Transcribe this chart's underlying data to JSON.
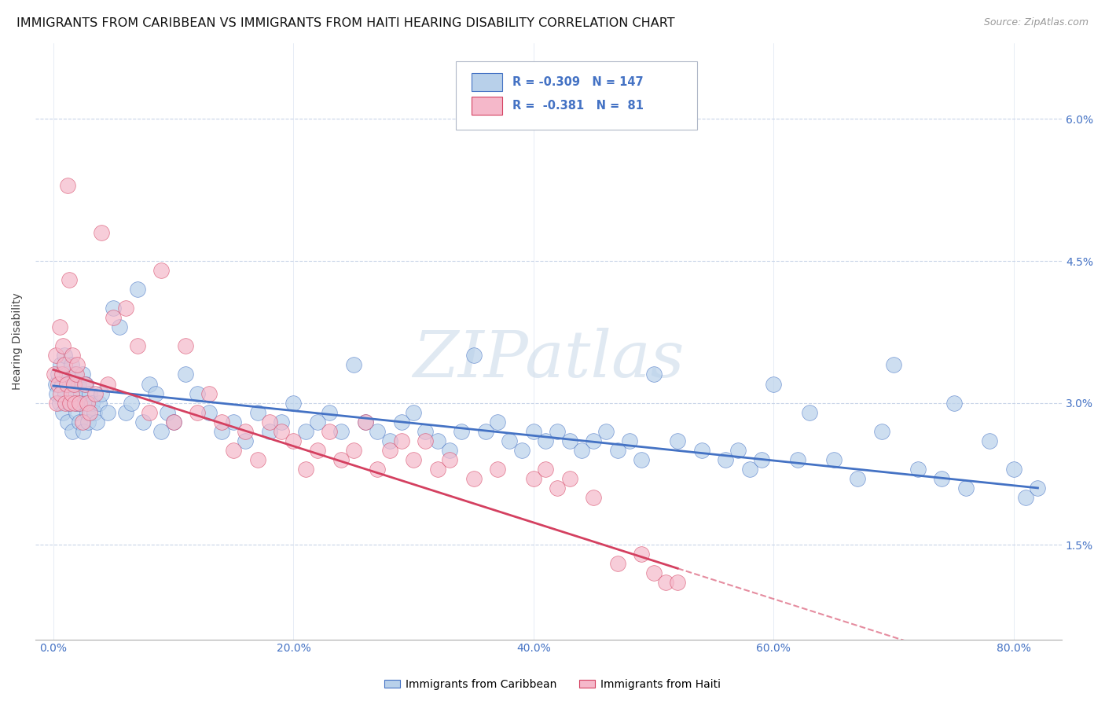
{
  "title": "IMMIGRANTS FROM CARIBBEAN VS IMMIGRANTS FROM HAITI HEARING DISABILITY CORRELATION CHART",
  "source": "Source: ZipAtlas.com",
  "xlabel_ticks": [
    "0.0%",
    "20.0%",
    "40.0%",
    "60.0%",
    "80.0%"
  ],
  "xlabel_vals": [
    0.0,
    20.0,
    40.0,
    60.0,
    80.0
  ],
  "ylabel_ticks": [
    "1.5%",
    "3.0%",
    "4.5%",
    "6.0%"
  ],
  "ylabel_vals": [
    1.5,
    3.0,
    4.5,
    6.0
  ],
  "ylim": [
    0.5,
    6.8
  ],
  "xlim": [
    -1.5,
    84.0
  ],
  "ylabel": "Hearing Disability",
  "legend_blue_label": "Immigrants from Caribbean",
  "legend_pink_label": "Immigrants from Haiti",
  "r_blue": "-0.309",
  "n_blue": "147",
  "r_pink": "-0.381",
  "n_pink": "81",
  "blue_color": "#b8d0ea",
  "pink_color": "#f5b8ca",
  "line_blue": "#4472c4",
  "line_pink": "#d44060",
  "line_dash_color": "#d44060",
  "watermark_color": "#c8d8e8",
  "title_fontsize": 11.5,
  "axis_label_color": "#4472c4",
  "grid_color": "#c8d4e8",
  "background_color": "#ffffff",
  "blue_scatter_x": [
    0.2,
    0.3,
    0.4,
    0.5,
    0.6,
    0.7,
    0.8,
    0.9,
    1.0,
    1.1,
    1.2,
    1.3,
    1.4,
    1.5,
    1.6,
    1.7,
    1.8,
    1.9,
    2.0,
    2.1,
    2.2,
    2.3,
    2.4,
    2.5,
    2.6,
    2.7,
    2.8,
    2.9,
    3.0,
    3.2,
    3.4,
    3.6,
    3.8,
    4.0,
    4.5,
    5.0,
    5.5,
    6.0,
    6.5,
    7.0,
    7.5,
    8.0,
    8.5,
    9.0,
    9.5,
    10.0,
    11.0,
    12.0,
    13.0,
    14.0,
    15.0,
    16.0,
    17.0,
    18.0,
    19.0,
    20.0,
    21.0,
    22.0,
    23.0,
    24.0,
    25.0,
    26.0,
    27.0,
    28.0,
    29.0,
    30.0,
    31.0,
    32.0,
    33.0,
    34.0,
    35.0,
    36.0,
    37.0,
    38.0,
    39.0,
    40.0,
    41.0,
    42.0,
    43.0,
    44.0,
    45.0,
    46.0,
    47.0,
    48.0,
    49.0,
    50.0,
    52.0,
    54.0,
    56.0,
    57.0,
    58.0,
    59.0,
    60.0,
    62.0,
    63.0,
    65.0,
    67.0,
    69.0,
    70.0,
    72.0,
    74.0,
    75.0,
    76.0,
    78.0,
    80.0,
    81.0,
    82.0
  ],
  "blue_scatter_y": [
    3.2,
    3.1,
    3.3,
    3.0,
    3.4,
    3.2,
    2.9,
    3.5,
    3.1,
    3.3,
    2.8,
    3.0,
    3.2,
    3.4,
    2.7,
    3.1,
    3.3,
    2.9,
    3.0,
    3.2,
    2.8,
    3.1,
    3.3,
    2.7,
    3.0,
    3.2,
    2.9,
    2.8,
    3.1,
    3.0,
    2.9,
    2.8,
    3.0,
    3.1,
    2.9,
    4.0,
    3.8,
    2.9,
    3.0,
    4.2,
    2.8,
    3.2,
    3.1,
    2.7,
    2.9,
    2.8,
    3.3,
    3.1,
    2.9,
    2.7,
    2.8,
    2.6,
    2.9,
    2.7,
    2.8,
    3.0,
    2.7,
    2.8,
    2.9,
    2.7,
    3.4,
    2.8,
    2.7,
    2.6,
    2.8,
    2.9,
    2.7,
    2.6,
    2.5,
    2.7,
    3.5,
    2.7,
    2.8,
    2.6,
    2.5,
    2.7,
    2.6,
    2.7,
    2.6,
    2.5,
    2.6,
    2.7,
    2.5,
    2.6,
    2.4,
    3.3,
    2.6,
    2.5,
    2.4,
    2.5,
    2.3,
    2.4,
    3.2,
    2.4,
    2.9,
    2.4,
    2.2,
    2.7,
    3.4,
    2.3,
    2.2,
    3.0,
    2.1,
    2.6,
    2.3,
    2.0,
    2.1
  ],
  "pink_scatter_x": [
    0.1,
    0.2,
    0.3,
    0.4,
    0.5,
    0.6,
    0.7,
    0.8,
    0.9,
    1.0,
    1.1,
    1.2,
    1.3,
    1.4,
    1.5,
    1.6,
    1.7,
    1.8,
    1.9,
    2.0,
    2.2,
    2.4,
    2.6,
    2.8,
    3.0,
    3.5,
    4.0,
    4.5,
    5.0,
    6.0,
    7.0,
    8.0,
    9.0,
    10.0,
    11.0,
    12.0,
    13.0,
    14.0,
    15.0,
    16.0,
    17.0,
    18.0,
    19.0,
    20.0,
    21.0,
    22.0,
    23.0,
    24.0,
    25.0,
    26.0,
    27.0,
    28.0,
    29.0,
    30.0,
    31.0,
    32.0,
    33.0,
    35.0,
    37.0,
    40.0,
    41.0,
    42.0,
    43.0,
    45.0,
    47.0,
    49.0,
    50.0,
    51.0,
    52.0
  ],
  "pink_scatter_y": [
    3.3,
    3.5,
    3.0,
    3.2,
    3.8,
    3.1,
    3.3,
    3.6,
    3.4,
    3.0,
    3.2,
    5.3,
    4.3,
    3.0,
    3.1,
    3.5,
    3.2,
    3.0,
    3.3,
    3.4,
    3.0,
    2.8,
    3.2,
    3.0,
    2.9,
    3.1,
    4.8,
    3.2,
    3.9,
    4.0,
    3.6,
    2.9,
    4.4,
    2.8,
    3.6,
    2.9,
    3.1,
    2.8,
    2.5,
    2.7,
    2.4,
    2.8,
    2.7,
    2.6,
    2.3,
    2.5,
    2.7,
    2.4,
    2.5,
    2.8,
    2.3,
    2.5,
    2.6,
    2.4,
    2.6,
    2.3,
    2.4,
    2.2,
    2.3,
    2.2,
    2.3,
    2.1,
    2.2,
    2.0,
    1.3,
    1.4,
    1.2,
    1.1,
    1.1
  ]
}
